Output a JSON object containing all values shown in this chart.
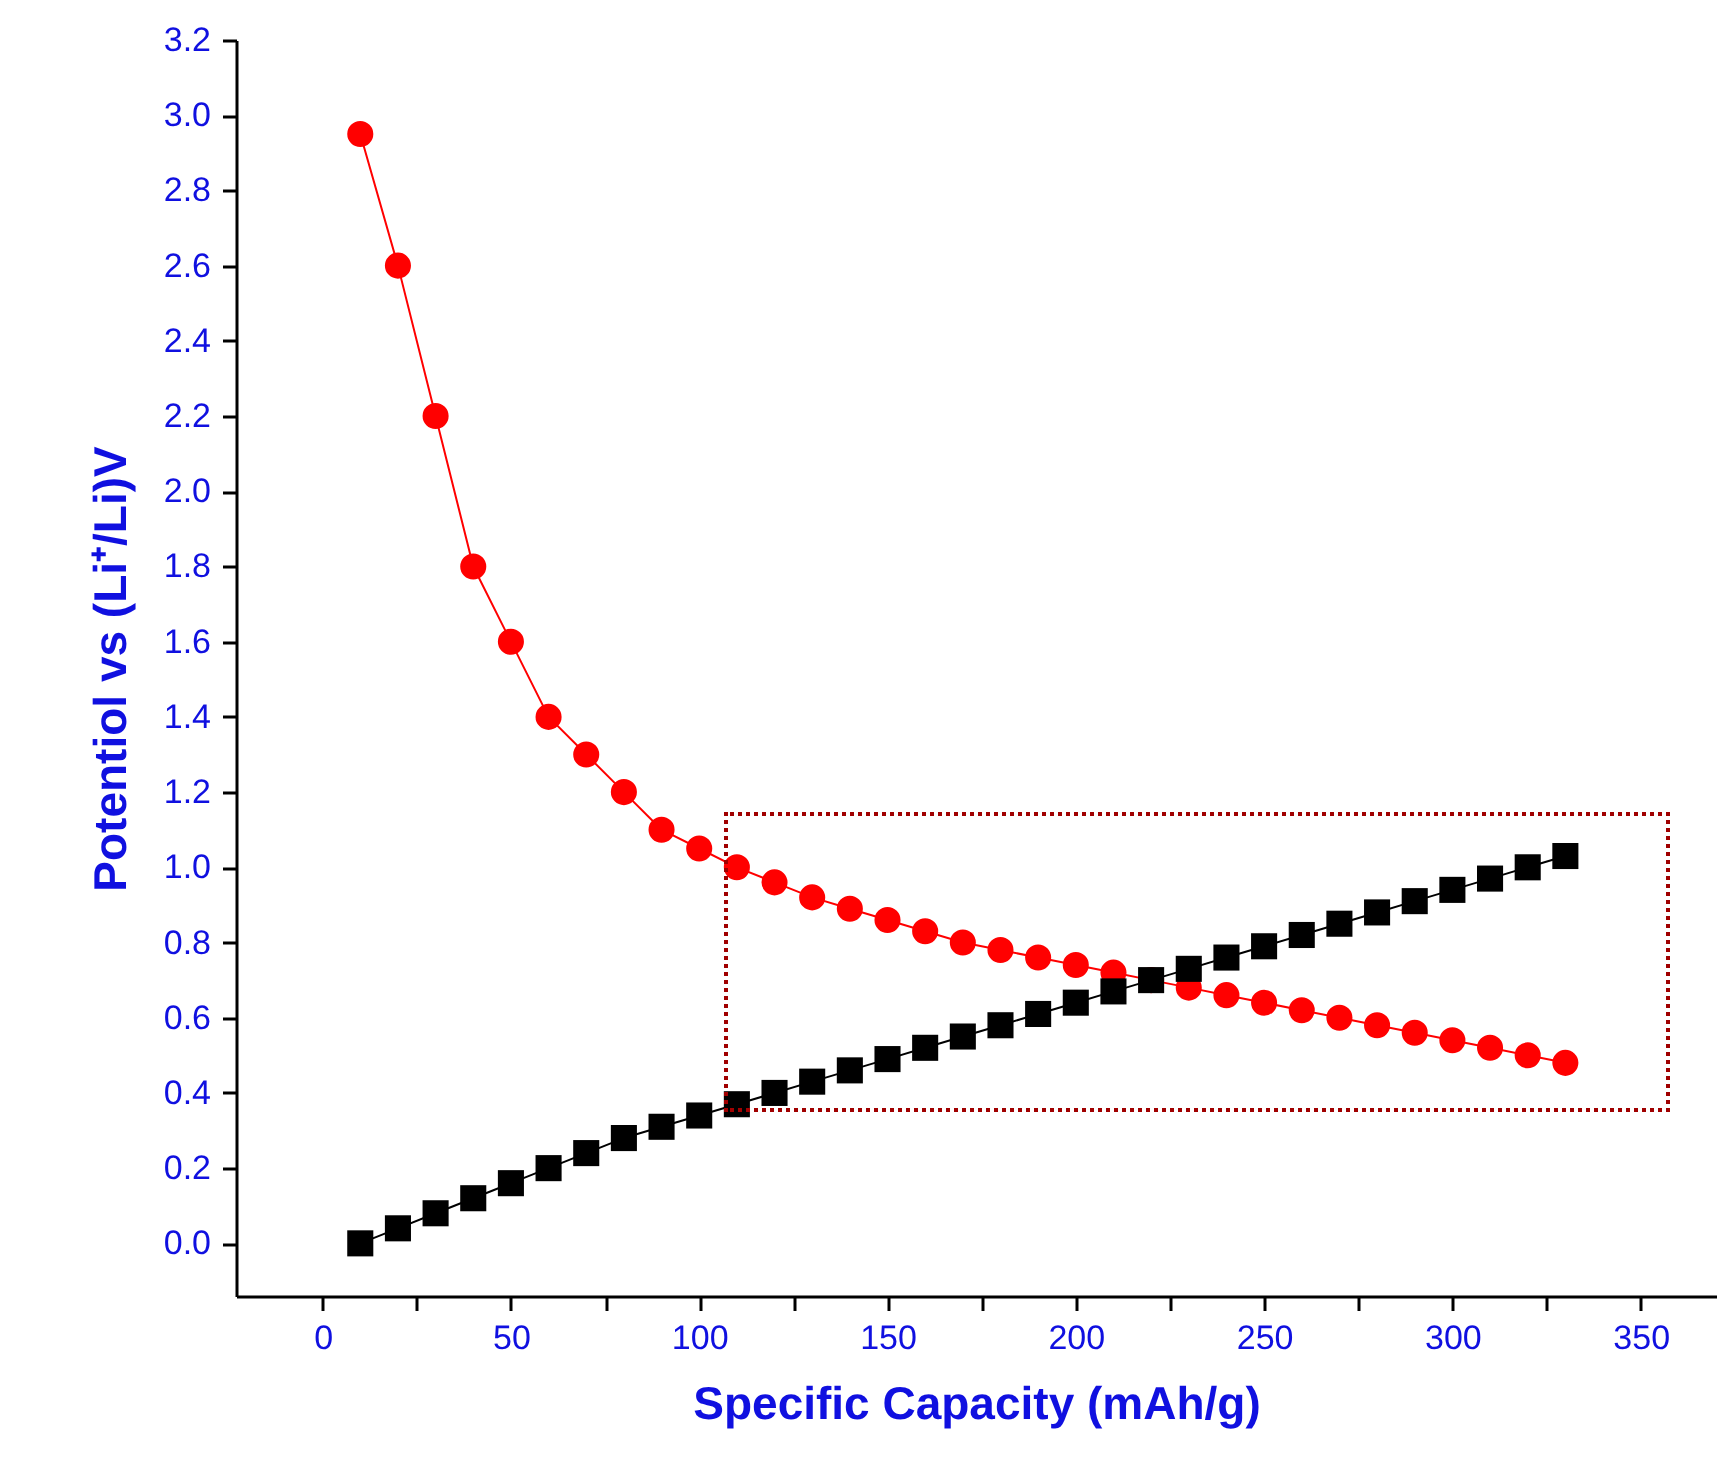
{
  "chart_data": {
    "type": "line",
    "xlabel": "Specific Capacity (mAh/g)",
    "ylabel": "Potentiol vs (Li⁺/Li)V",
    "x": [
      10,
      20,
      30,
      40,
      50,
      60,
      70,
      80,
      90,
      100,
      110,
      120,
      130,
      140,
      150,
      160,
      170,
      180,
      190,
      200,
      210,
      220,
      230,
      240,
      250,
      260,
      270,
      280,
      290,
      300,
      310,
      320,
      330
    ],
    "series": [
      {
        "color": "#ff0000",
        "marker": "circle",
        "values": [
          2.95,
          2.6,
          2.2,
          1.8,
          1.6,
          1.4,
          1.3,
          1.2,
          1.1,
          1.05,
          1.0,
          0.96,
          0.92,
          0.89,
          0.86,
          0.83,
          0.8,
          0.78,
          0.76,
          0.74,
          0.72,
          0.7,
          0.68,
          0.66,
          0.64,
          0.62,
          0.6,
          0.58,
          0.56,
          0.54,
          0.52,
          0.5,
          0.48
        ]
      },
      {
        "color": "#000000",
        "marker": "square",
        "values": [
          0.0,
          0.04,
          0.08,
          0.12,
          0.16,
          0.2,
          0.24,
          0.28,
          0.31,
          0.34,
          0.37,
          0.4,
          0.43,
          0.46,
          0.49,
          0.52,
          0.55,
          0.58,
          0.61,
          0.64,
          0.67,
          0.7,
          0.73,
          0.76,
          0.79,
          0.82,
          0.85,
          0.88,
          0.91,
          0.94,
          0.97,
          1.0,
          1.03
        ]
      }
    ],
    "xlim": [
      -23,
      370
    ],
    "xticks": [
      0,
      {
        "value": 25,
        "label": null
      },
      50,
      {
        "value": 75,
        "label": null
      },
      100,
      {
        "value": 125,
        "label": null
      },
      150,
      {
        "value": 175,
        "label": null
      },
      200,
      {
        "value": 225,
        "label": null
      },
      250,
      {
        "value": 275,
        "label": null
      },
      300,
      {
        "value": 325,
        "label": null
      },
      350
    ],
    "ylim": [
      -0.14,
      3.2
    ],
    "yticks": [
      {
        "value": 0,
        "label": "0.0"
      },
      0.2,
      0.4,
      0.6,
      0.8,
      {
        "value": 1,
        "label": "1.0"
      },
      1.2,
      1.4,
      1.6,
      1.8,
      {
        "value": 2,
        "label": "2.0"
      },
      2.2,
      2.4,
      2.6,
      2.8,
      {
        "value": 3,
        "label": "3.0"
      },
      3.2
    ],
    "grid": false,
    "line_style": "solid"
  }
}
